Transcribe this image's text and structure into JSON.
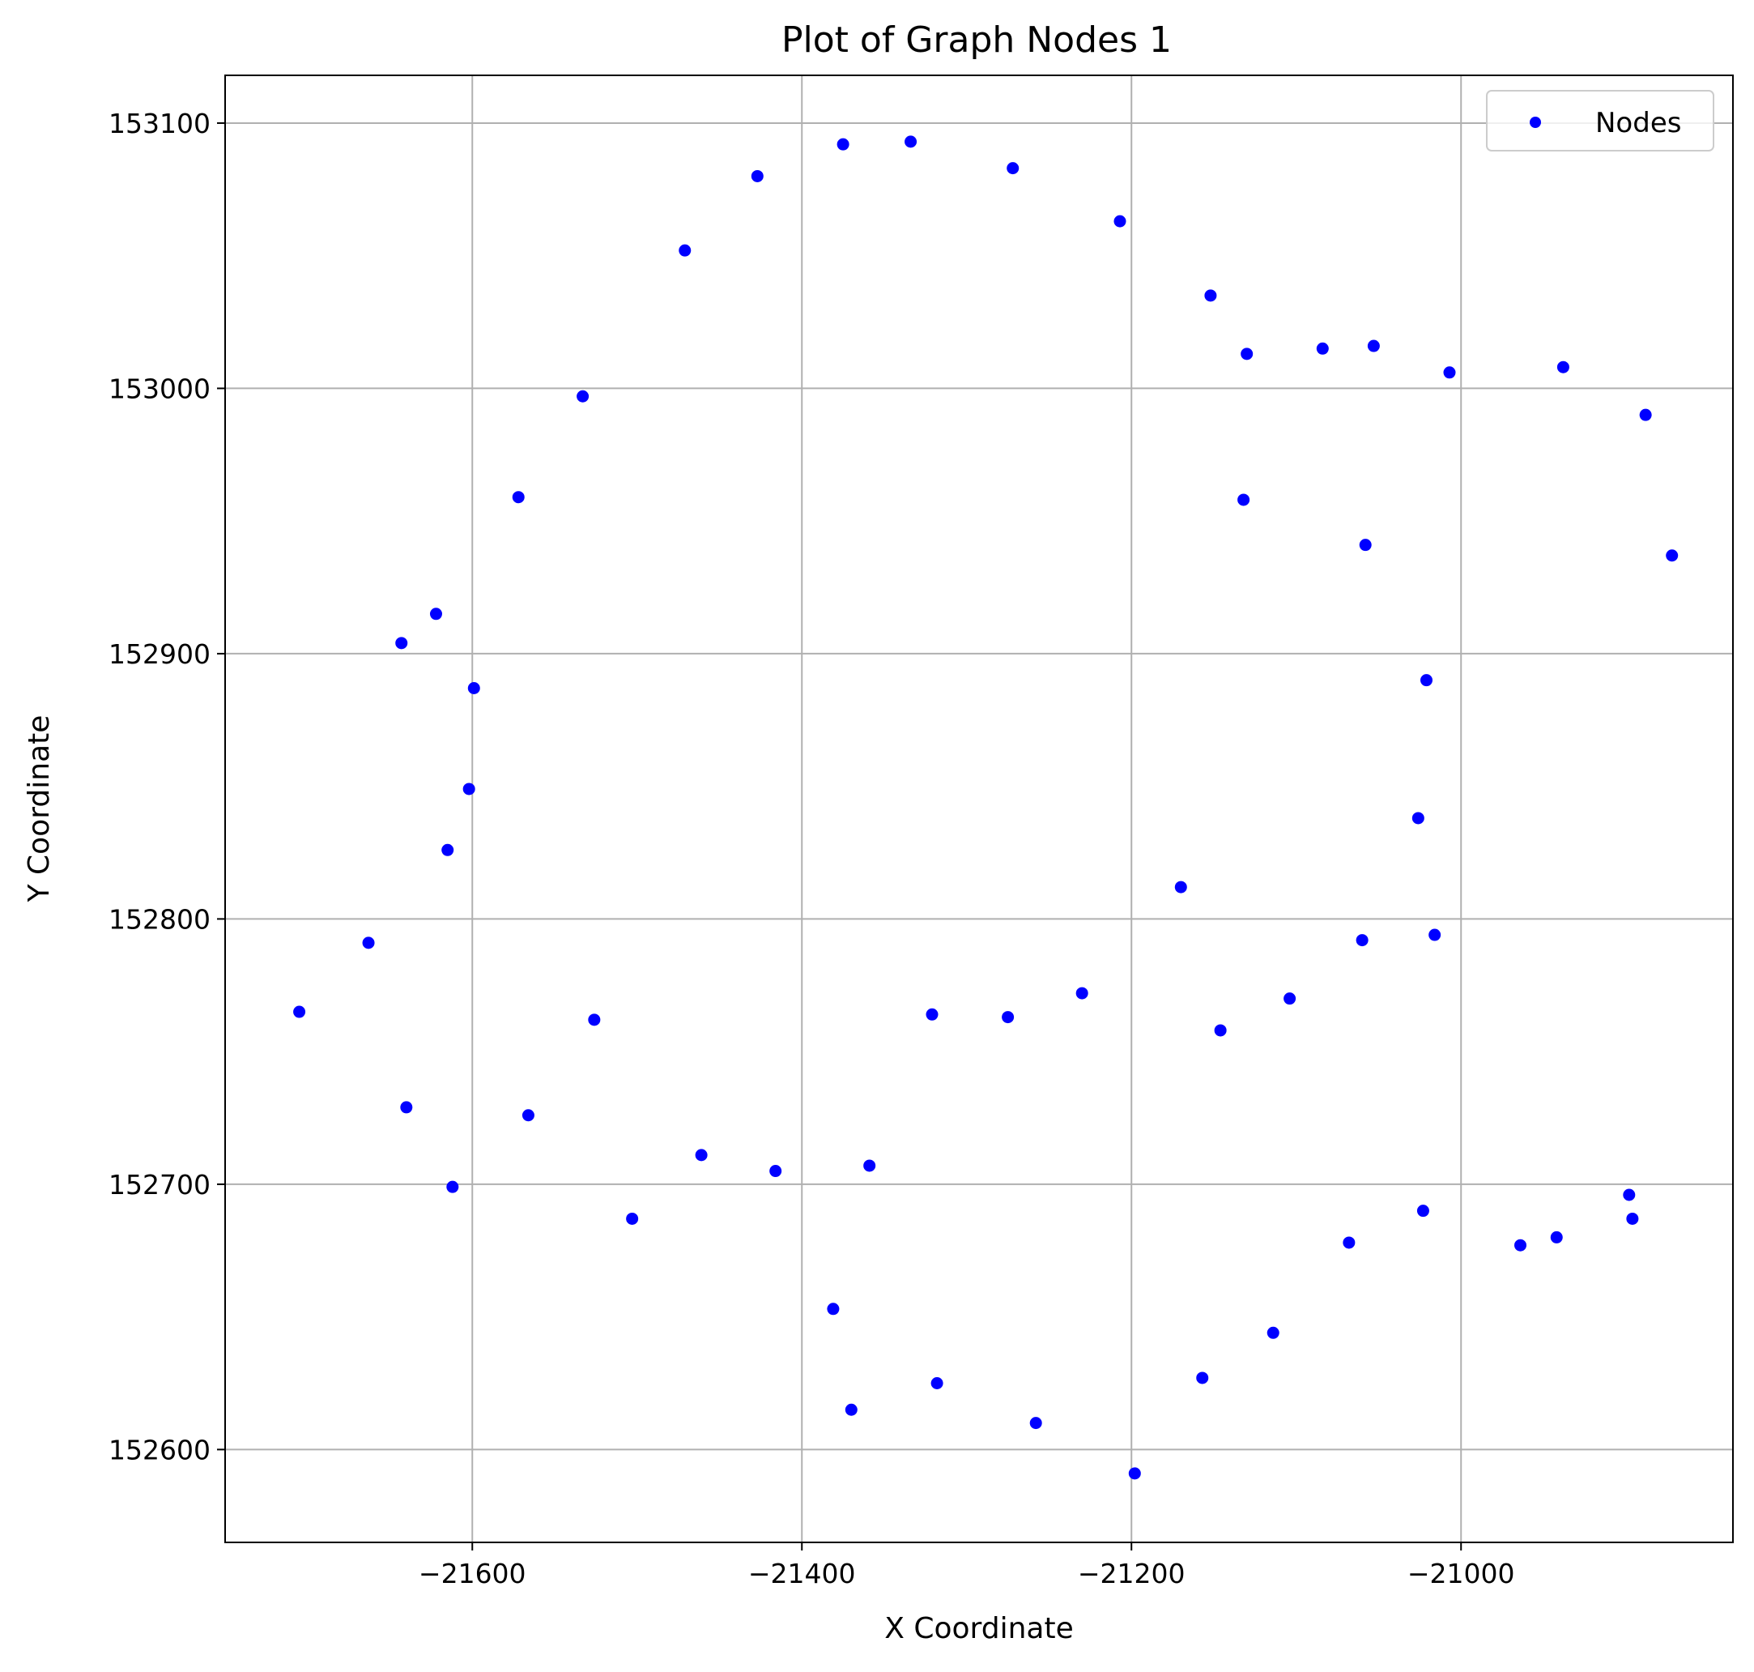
{
  "chart_data": {
    "type": "scatter",
    "title": "Plot of Graph Nodes 1",
    "xlabel": "X Coordinate",
    "ylabel": "Y Coordinate",
    "xlim": [
      -21750,
      -20835
    ],
    "ylim": [
      152565,
      153118
    ],
    "xticks": [
      -21600,
      -21400,
      -21200,
      -21000
    ],
    "yticks": [
      152600,
      152700,
      152800,
      152900,
      153000,
      153100
    ],
    "xtick_labels": [
      "−21600",
      "−21400",
      "−21200",
      "−21000"
    ],
    "ytick_labels": [
      "152600",
      "152700",
      "152800",
      "152900",
      "153000",
      "153100"
    ],
    "grid": true,
    "legend_position": "upper-right",
    "color": "#0000ff",
    "series": [
      {
        "name": "Nodes",
        "points": [
          [
            -21375,
            153092
          ],
          [
            -21334,
            153093
          ],
          [
            -21427,
            153080
          ],
          [
            -21272,
            153083
          ],
          [
            -21207,
            153063
          ],
          [
            -21471,
            153052
          ],
          [
            -21152,
            153035
          ],
          [
            -21130,
            153013
          ],
          [
            -21084,
            153015
          ],
          [
            -21053,
            153016
          ],
          [
            -21007,
            153006
          ],
          [
            -20938,
            153008
          ],
          [
            -20888,
            152990
          ],
          [
            -21533,
            152997
          ],
          [
            -21572,
            152959
          ],
          [
            -21132,
            152958
          ],
          [
            -21058,
            152941
          ],
          [
            -20872,
            152937
          ],
          [
            -21622,
            152915
          ],
          [
            -21643,
            152904
          ],
          [
            -21599,
            152887
          ],
          [
            -21021,
            152890
          ],
          [
            -21602,
            152849
          ],
          [
            -21026,
            152838
          ],
          [
            -21615,
            152826
          ],
          [
            -21170,
            152812
          ],
          [
            -21663,
            152791
          ],
          [
            -21060,
            152792
          ],
          [
            -21016,
            152794
          ],
          [
            -21705,
            152765
          ],
          [
            -21526,
            152762
          ],
          [
            -21321,
            152764
          ],
          [
            -21275,
            152763
          ],
          [
            -21230,
            152772
          ],
          [
            -21104,
            152770
          ],
          [
            -21146,
            152758
          ],
          [
            -21640,
            152729
          ],
          [
            -21566,
            152726
          ],
          [
            -21461,
            152711
          ],
          [
            -21416,
            152705
          ],
          [
            -21359,
            152707
          ],
          [
            -21612,
            152699
          ],
          [
            -21503,
            152687
          ],
          [
            -21023,
            152690
          ],
          [
            -21068,
            152678
          ],
          [
            -20898,
            152696
          ],
          [
            -20896,
            152687
          ],
          [
            -20942,
            152680
          ],
          [
            -20964,
            152677
          ],
          [
            -21381,
            152653
          ],
          [
            -21114,
            152644
          ],
          [
            -21157,
            152627
          ],
          [
            -21318,
            152625
          ],
          [
            -21370,
            152615
          ],
          [
            -21258,
            152610
          ],
          [
            -21198,
            152591
          ]
        ]
      }
    ]
  }
}
